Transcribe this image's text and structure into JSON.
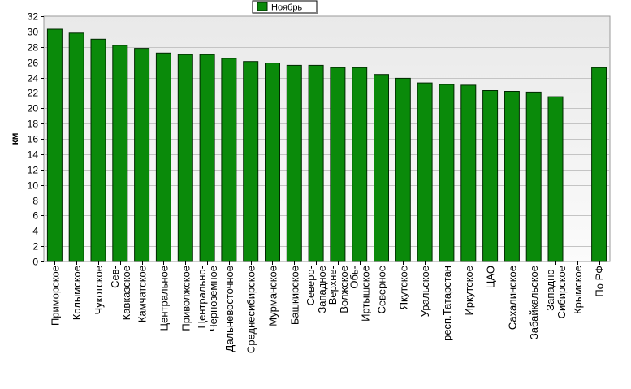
{
  "chart_data": {
    "type": "bar",
    "title": "",
    "xlabel": "",
    "ylabel": "км",
    "ylim": [
      0,
      32
    ],
    "ytick_step": 2,
    "grid": true,
    "legend_position": "top-center",
    "categories": [
      "Приморское",
      "Колымское",
      "Чукотское",
      "Сев-Кавказское",
      "Камчатское",
      "Центральное",
      "Приволжское",
      "Центрально-Черноземное",
      "Дальневосточное",
      "Среднесибирское",
      "Мурманское",
      "Башкирское",
      "Северо-Западное",
      "Верхне-Волжское",
      "Обь-Иртышское",
      "Северное",
      "Якутское",
      "Уральское",
      "респ.Татарстан",
      "Иркутское",
      "ЦАО",
      "Сахалинское",
      "Забайкальское",
      "Западно-Сибирское",
      "Крымское",
      "По РФ"
    ],
    "series": [
      {
        "name": "Ноябрь",
        "color": "#0a8a0a",
        "values": [
          30.3,
          29.8,
          29.0,
          28.2,
          27.8,
          27.2,
          27.0,
          27.0,
          26.5,
          26.1,
          25.9,
          25.6,
          25.6,
          25.3,
          25.3,
          24.4,
          23.9,
          23.3,
          23.1,
          23.0,
          22.3,
          22.2,
          22.1,
          21.5,
          0,
          25.3
        ]
      }
    ]
  },
  "colors": {
    "plot_background": "#efefef",
    "gridline": "#c4c4c4",
    "bar_fill": "#0a8a0a",
    "bar_stroke": "#002800"
  }
}
